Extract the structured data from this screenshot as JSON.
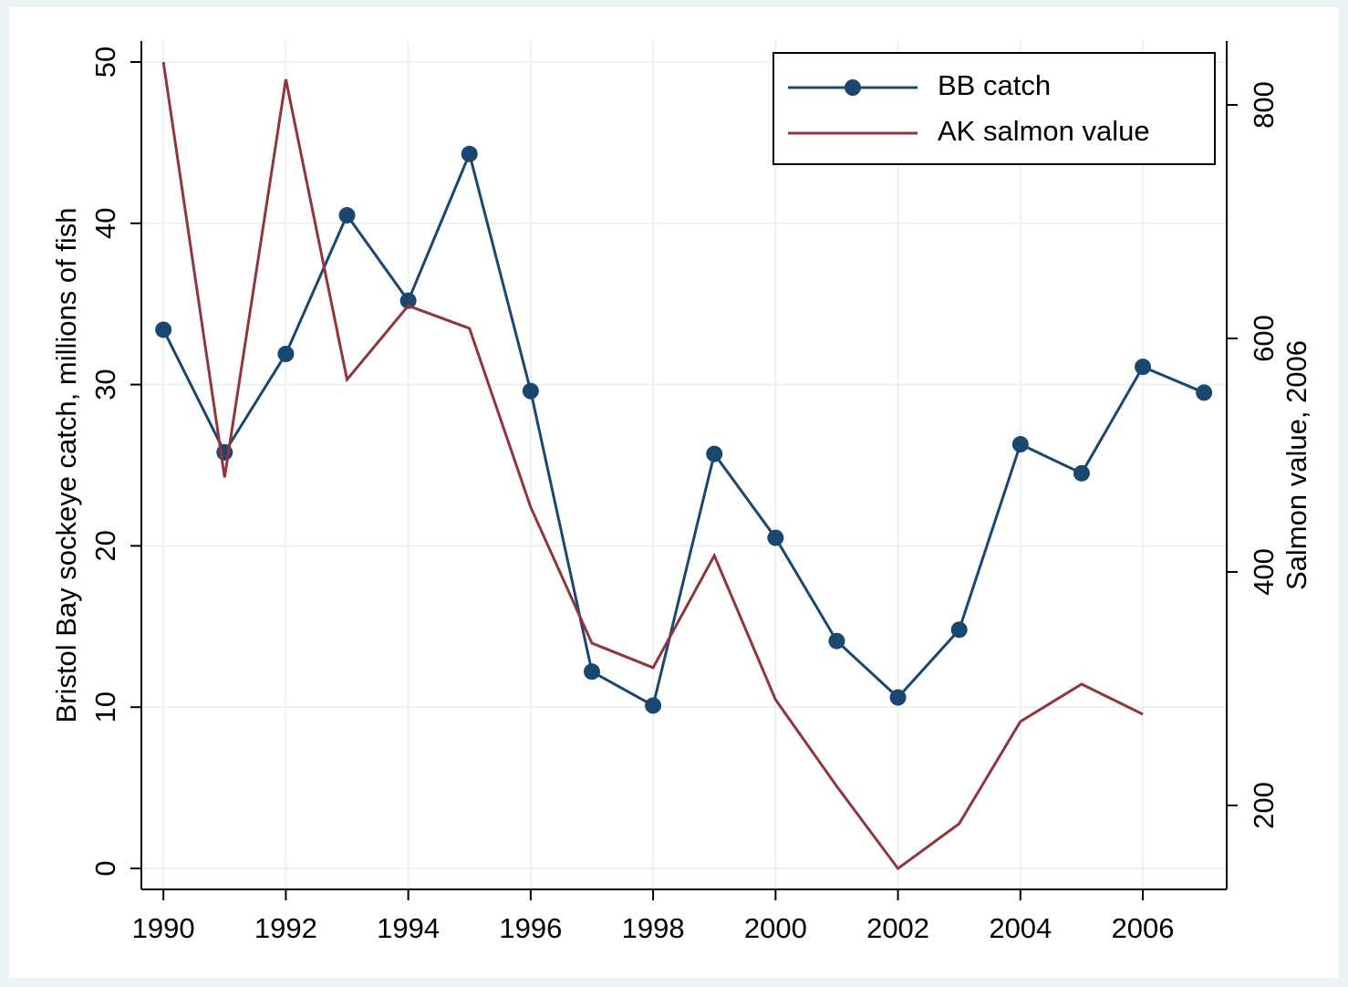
{
  "chart_data": {
    "type": "line",
    "x": [
      1990,
      1991,
      1992,
      1993,
      1994,
      1995,
      1996,
      1997,
      1998,
      1999,
      2000,
      2001,
      2002,
      2003,
      2004,
      2005,
      2006,
      2007
    ],
    "xlim": [
      1989.64,
      2007.37
    ],
    "xticks": [
      1990,
      1992,
      1994,
      1996,
      1998,
      2000,
      2002,
      2004,
      2006
    ],
    "ylabel": "Bristol Bay sockeye catch, millions of fish",
    "ylim": [
      -1.3,
      51.3
    ],
    "yticks": [
      0,
      10,
      20,
      30,
      40,
      50
    ],
    "y2label": "Salmon value,  2006",
    "y2lim": [
      128.1,
      854.7
    ],
    "y2ticks": [
      200,
      400,
      600,
      800
    ],
    "grid": true,
    "legend": "top-right",
    "series": [
      {
        "name": "BB catch",
        "color": "#1a476f",
        "marker": true,
        "values": [
          33.4,
          25.8,
          31.9,
          40.5,
          35.2,
          44.3,
          29.6,
          12.2,
          10.1,
          25.7,
          20.5,
          14.1,
          10.6,
          14.8,
          26.3,
          24.5,
          31.1,
          29.5
        ]
      },
      {
        "name": "AK salmon value",
        "color": "#90353b",
        "axis": "y2",
        "marker": false,
        "values": [
          836.7,
          481,
          821.9,
          564.8,
          628,
          608.6,
          455.5,
          339,
          318,
          414,
          290.6,
          216.4,
          146,
          184.4,
          271.9,
          303.9,
          278.1,
          null
        ]
      }
    ]
  }
}
